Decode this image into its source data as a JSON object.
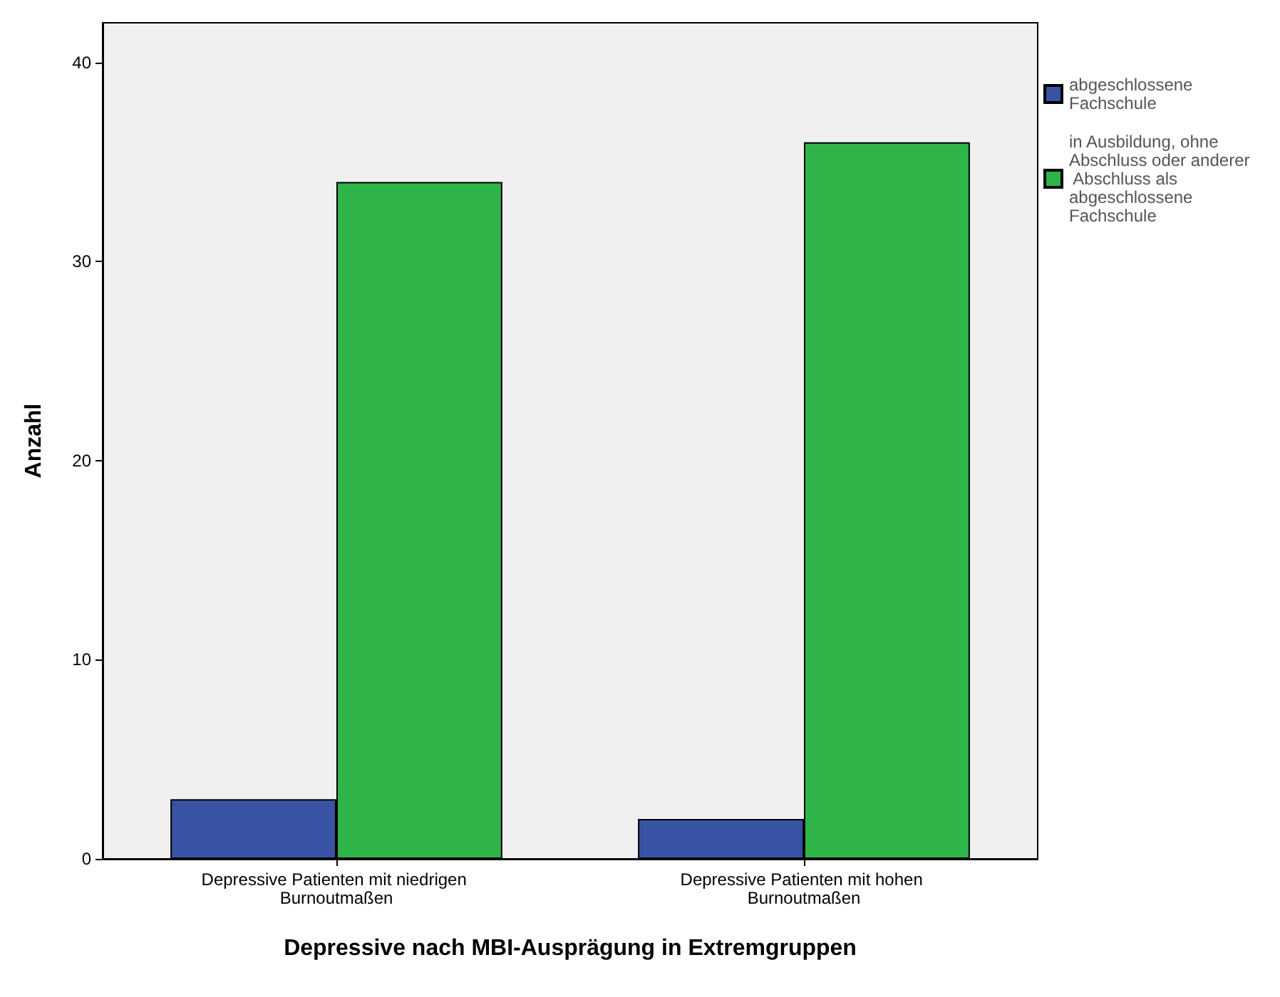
{
  "chart_data": {
    "type": "bar",
    "xlabel": "Depressive nach MBI-Ausprägung in Extremgruppen",
    "ylabel": "Anzahl",
    "categories": [
      "Depressive Patienten mit niedrigen Burnoutmaßen",
      "Depressive Patienten mit hohen Burnoutmaßen"
    ],
    "series": [
      {
        "name": "abgeschlossene Fachschule",
        "color": "#3953a4",
        "values": [
          3,
          2
        ]
      },
      {
        "name": "in Ausbildung, ohne Abschluss oder anderer Abschluss als abgeschlossene Fachschule",
        "color": "#2fb44a",
        "values": [
          34,
          36
        ]
      }
    ],
    "ylim": [
      0,
      42
    ],
    "yticks": [
      0,
      10,
      20,
      30,
      40
    ],
    "grid": false,
    "legend": "right"
  }
}
